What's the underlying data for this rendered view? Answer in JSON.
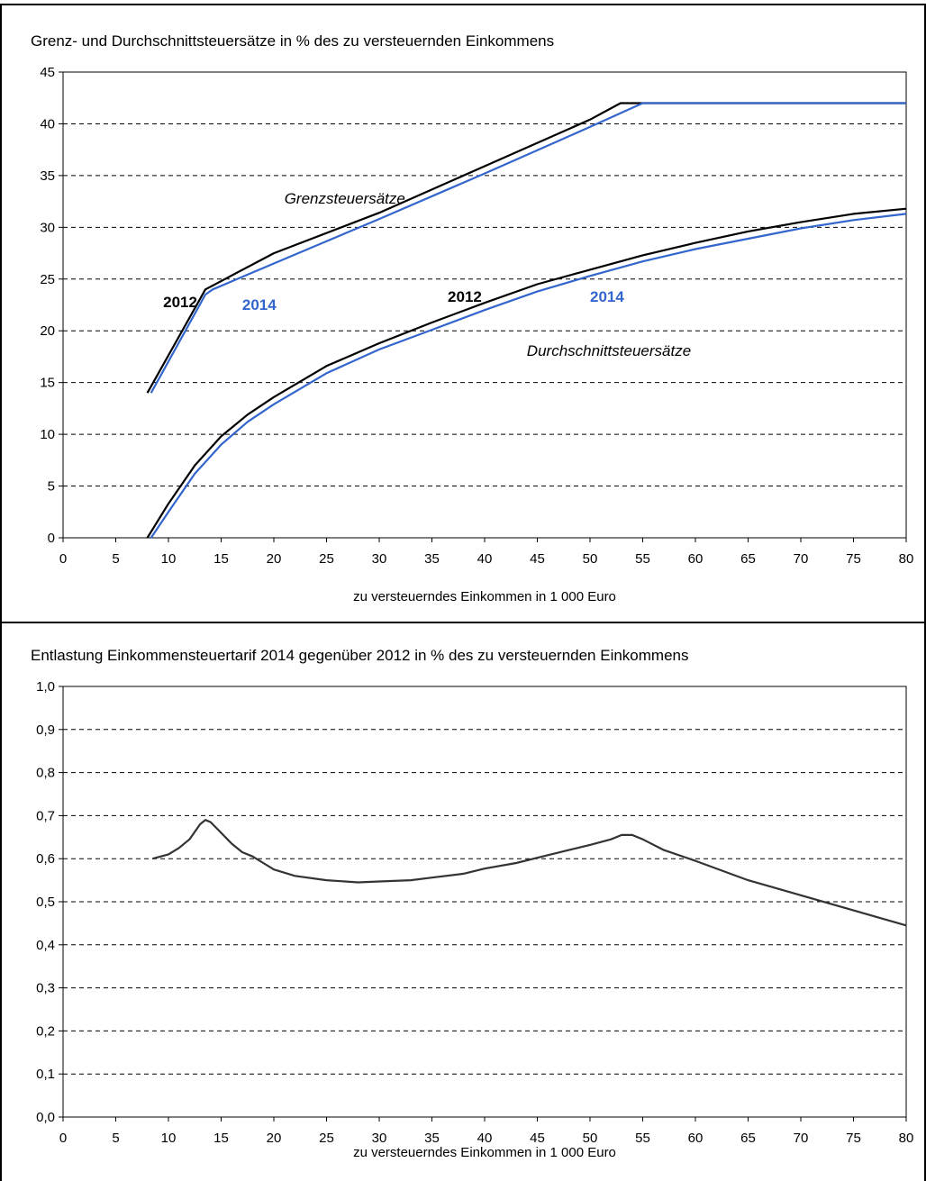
{
  "chart_data": [
    {
      "type": "line",
      "title": "Grenz- und Durchschnittsteuersätze in % des zu versteuernden Einkommens",
      "xlabel": "zu versteuerndes Einkommen in 1 000 Euro",
      "ylabel": "",
      "xlim": [
        0,
        80
      ],
      "ylim": [
        0,
        45
      ],
      "x_ticks": [
        "0",
        "5",
        "10",
        "15",
        "20",
        "25",
        "30",
        "35",
        "40",
        "45",
        "50",
        "55",
        "60",
        "65",
        "70",
        "75",
        "80"
      ],
      "y_ticks": [
        "0",
        "5",
        "10",
        "15",
        "20",
        "25",
        "30",
        "35",
        "40",
        "45"
      ],
      "grid": "horizontal dashed",
      "colors": {
        "2012": "#000000",
        "2014": "#3366cc"
      },
      "series": [
        {
          "name": "2012",
          "group": "Grenzsteuersätze",
          "points": [
            [
              8.0,
              14.0
            ],
            [
              13.5,
              24.0
            ],
            [
              20,
              27.5
            ],
            [
              30,
              31.4
            ],
            [
              40,
              35.9
            ],
            [
              50,
              40.4
            ],
            [
              52.9,
              42.0
            ],
            [
              80,
              42.0
            ]
          ]
        },
        {
          "name": "2014",
          "group": "Grenzsteuersätze",
          "points": [
            [
              8.35,
              14.0
            ],
            [
              13.5,
              23.5
            ],
            [
              14.2,
              24.0
            ],
            [
              20,
              26.5
            ],
            [
              30,
              30.8
            ],
            [
              40,
              35.2
            ],
            [
              50,
              39.7
            ],
            [
              55,
              42.0
            ],
            [
              80,
              42.0
            ]
          ]
        },
        {
          "name": "2012",
          "group": "Durchschnittsteuersätze",
          "points": [
            [
              8.0,
              0.0
            ],
            [
              10,
              3.3
            ],
            [
              12.5,
              7.0
            ],
            [
              15,
              9.8
            ],
            [
              17.5,
              11.9
            ],
            [
              20,
              13.6
            ],
            [
              25,
              16.6
            ],
            [
              30,
              18.8
            ],
            [
              35,
              20.8
            ],
            [
              40,
              22.7
            ],
            [
              45,
              24.5
            ],
            [
              50,
              25.9
            ],
            [
              55,
              27.3
            ],
            [
              60,
              28.5
            ],
            [
              65,
              29.6
            ],
            [
              70,
              30.5
            ],
            [
              75,
              31.3
            ],
            [
              80,
              31.8
            ]
          ]
        },
        {
          "name": "2014",
          "group": "Durchschnittsteuersätze",
          "points": [
            [
              8.35,
              0.0
            ],
            [
              10,
              2.5
            ],
            [
              12.5,
              6.2
            ],
            [
              15,
              9.0
            ],
            [
              17.5,
              11.2
            ],
            [
              20,
              12.9
            ],
            [
              25,
              15.9
            ],
            [
              30,
              18.2
            ],
            [
              35,
              20.1
            ],
            [
              40,
              22.0
            ],
            [
              45,
              23.8
            ],
            [
              50,
              25.3
            ],
            [
              55,
              26.7
            ],
            [
              60,
              27.9
            ],
            [
              65,
              28.9
            ],
            [
              70,
              29.9
            ],
            [
              75,
              30.7
            ],
            [
              80,
              31.3
            ]
          ]
        }
      ],
      "annotations": [
        {
          "text": "Grenzsteuersätze",
          "style": "italic",
          "color": "#000000",
          "at": [
            21,
            32.3
          ]
        },
        {
          "text": "2012",
          "style": "bold",
          "color": "#000000",
          "at": [
            9.5,
            22.3
          ]
        },
        {
          "text": "2014",
          "style": "bold",
          "color": "#3366cc",
          "at": [
            17,
            22
          ]
        },
        {
          "text": "2012",
          "style": "bold",
          "color": "#000000",
          "at": [
            36.5,
            22.8
          ]
        },
        {
          "text": "2014",
          "style": "bold",
          "color": "#3366cc",
          "at": [
            50,
            22.8
          ]
        },
        {
          "text": "Durchschnittsteuersätze",
          "style": "italic",
          "color": "#000000",
          "at": [
            44,
            17.6
          ]
        }
      ]
    },
    {
      "type": "line",
      "title": "Entlastung Einkommensteuertarif 2014 gegenüber 2012 in % des zu versteuernden Einkommens",
      "xlabel": "zu versteuerndes Einkommen in 1 000 Euro",
      "ylabel": "",
      "xlim": [
        0,
        80
      ],
      "ylim": [
        0,
        1
      ],
      "x_ticks": [
        "0",
        "5",
        "10",
        "15",
        "20",
        "25",
        "30",
        "35",
        "40",
        "45",
        "50",
        "55",
        "60",
        "65",
        "70",
        "75",
        "80"
      ],
      "y_ticks": [
        "0,0",
        "0,1",
        "0,2",
        "0,3",
        "0,4",
        "0,5",
        "0,6",
        "0,7",
        "0,8",
        "0,9",
        "1,0"
      ],
      "grid": "horizontal dashed",
      "colors": {
        "line": "#333333"
      },
      "series": [
        {
          "name": "",
          "points": [
            [
              8.5,
              0.6
            ],
            [
              10,
              0.61
            ],
            [
              11,
              0.625
            ],
            [
              12,
              0.645
            ],
            [
              13,
              0.68
            ],
            [
              13.5,
              0.69
            ],
            [
              14,
              0.685
            ],
            [
              15,
              0.66
            ],
            [
              16,
              0.635
            ],
            [
              17,
              0.615
            ],
            [
              18,
              0.605
            ],
            [
              19,
              0.59
            ],
            [
              20,
              0.575
            ],
            [
              22,
              0.56
            ],
            [
              25,
              0.55
            ],
            [
              28,
              0.545
            ],
            [
              30,
              0.547
            ],
            [
              33,
              0.55
            ],
            [
              35,
              0.556
            ],
            [
              38,
              0.565
            ],
            [
              40,
              0.577
            ],
            [
              43,
              0.59
            ],
            [
              45,
              0.602
            ],
            [
              48,
              0.62
            ],
            [
              50,
              0.632
            ],
            [
              52,
              0.645
            ],
            [
              53,
              0.655
            ],
            [
              54,
              0.655
            ],
            [
              55,
              0.645
            ],
            [
              57,
              0.62
            ],
            [
              60,
              0.595
            ],
            [
              65,
              0.55
            ],
            [
              70,
              0.515
            ],
            [
              75,
              0.48
            ],
            [
              80,
              0.445
            ]
          ]
        }
      ]
    }
  ]
}
